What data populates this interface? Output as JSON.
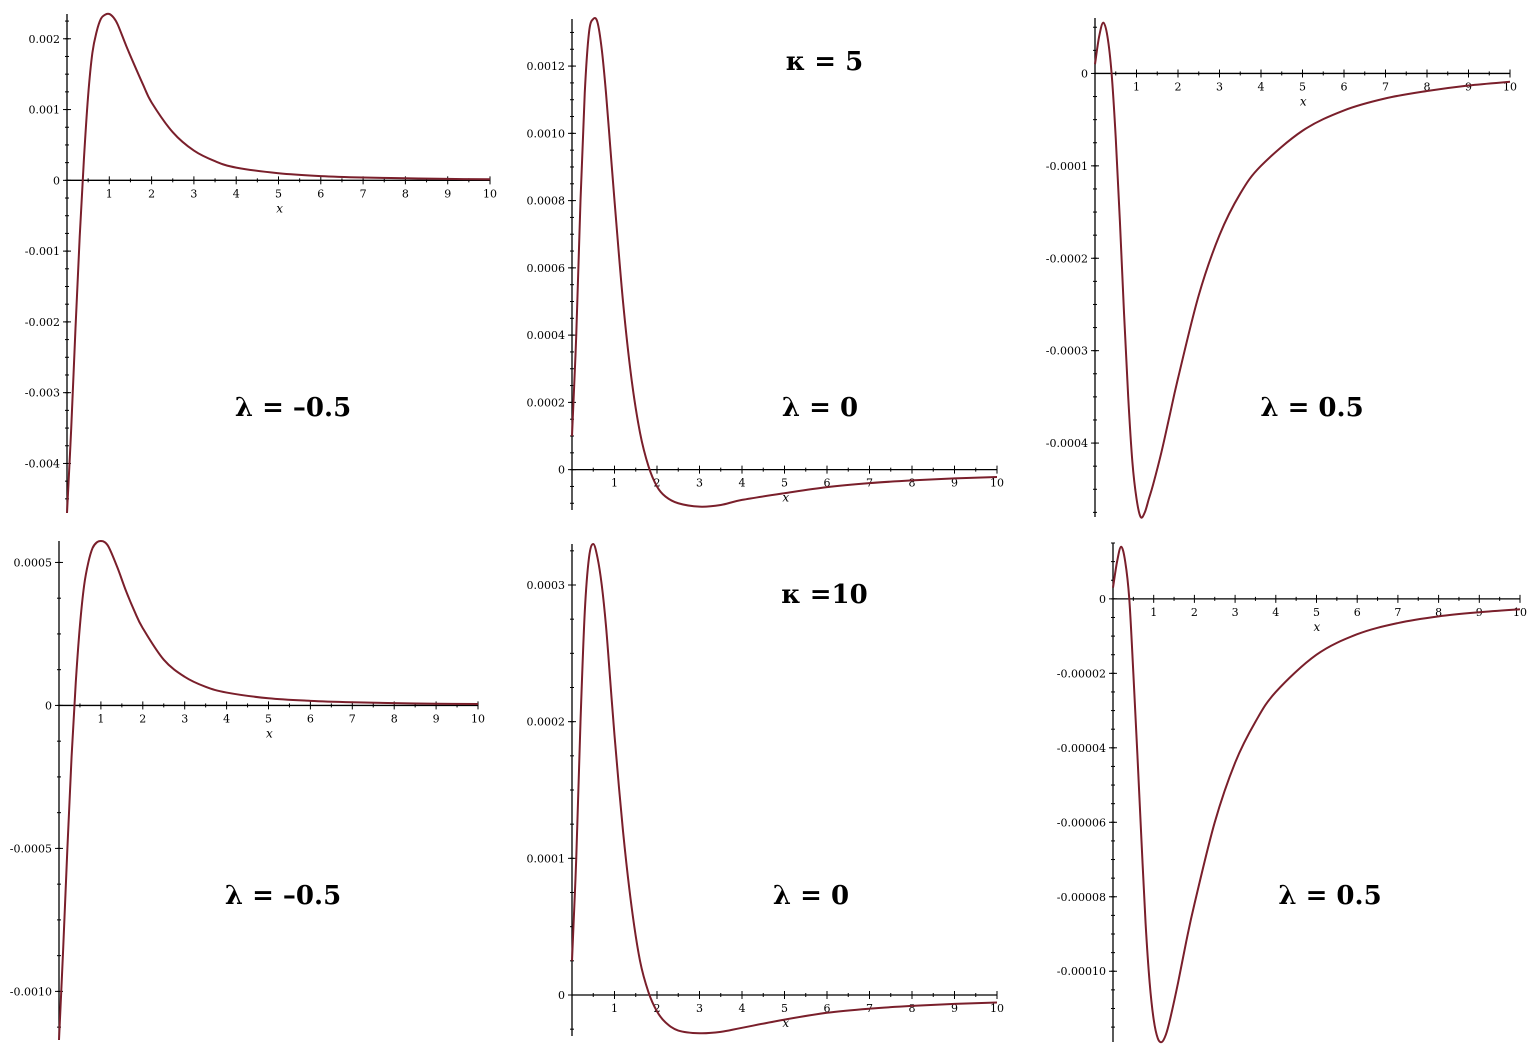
{
  "colors": {
    "curve": "#7a1f2b",
    "axes": "#000000",
    "background": "#ffffff"
  },
  "chart_data": [
    {
      "type": "line",
      "panel": "top-left",
      "xlabel": "x",
      "annotation": "λ = –0.5",
      "xlim": [
        0,
        10
      ],
      "ylim": [
        -0.0047,
        0.00235
      ],
      "xticks": [
        1,
        2,
        3,
        4,
        5,
        6,
        7,
        8,
        9,
        10
      ],
      "xtick_labels": [
        "1",
        "2",
        "3",
        "4",
        "5",
        "6",
        "7",
        "8",
        "9",
        "10"
      ],
      "yticks": [
        -0.004,
        -0.003,
        -0.002,
        -0.001,
        0,
        0.001,
        0.002
      ],
      "ytick_labels": [
        "-0.004",
        "-0.003",
        "-0.002",
        "-0.001",
        "0",
        "0.001",
        "0.002"
      ],
      "x": [
        0,
        0.1,
        0.2,
        0.3,
        0.4,
        0.5,
        0.6,
        0.7,
        0.8,
        0.9,
        1,
        1.1,
        1.2,
        1.4,
        1.6,
        1.8,
        2,
        2.5,
        3,
        3.5,
        4,
        5,
        6,
        7,
        8,
        9,
        10
      ],
      "y": [
        -0.0047,
        -0.0035,
        -0.0021,
        -0.0008,
        0.0003,
        0.0012,
        0.0018,
        0.0021,
        0.00228,
        0.00234,
        0.00235,
        0.0023,
        0.0022,
        0.0019,
        0.00162,
        0.00135,
        0.0011,
        0.00068,
        0.00042,
        0.00027,
        0.00018,
        0.0001,
        6e-05,
        4e-05,
        3e-05,
        2e-05,
        1.5e-05
      ]
    },
    {
      "type": "line",
      "panel": "top-middle",
      "xlabel": "x",
      "annotation": "λ = 0",
      "title": "κ = 5",
      "xlim": [
        0,
        10
      ],
      "ylim": [
        -0.00012,
        0.00134
      ],
      "xticks": [
        1,
        2,
        3,
        4,
        5,
        6,
        7,
        8,
        9,
        10
      ],
      "xtick_labels": [
        "1",
        "2",
        "3",
        "4",
        "5",
        "6",
        "7",
        "8",
        "9",
        "10"
      ],
      "yticks": [
        0,
        0.0002,
        0.0004,
        0.0006,
        0.0008,
        0.001,
        0.0012
      ],
      "ytick_labels": [
        "0",
        "0.0002",
        "0.0004",
        "0.0006",
        "0.0008",
        "0.0010",
        "0.0012"
      ],
      "x": [
        0,
        0.1,
        0.2,
        0.3,
        0.4,
        0.5,
        0.6,
        0.7,
        0.8,
        0.9,
        1,
        1.2,
        1.4,
        1.6,
        1.8,
        2,
        2.2,
        2.5,
        3,
        3.5,
        4,
        5,
        6,
        7,
        8,
        9,
        10
      ],
      "y": [
        0.0001,
        0.0004,
        0.0008,
        0.00112,
        0.0013,
        0.00134,
        0.00133,
        0.00125,
        0.00112,
        0.00096,
        0.0008,
        0.0005,
        0.00027,
        0.00011,
        1e-05,
        -5e-05,
        -8e-05,
        -0.0001,
        -0.00011,
        -0.000105,
        -9e-05,
        -7e-05,
        -5.2e-05,
        -4e-05,
        -3.2e-05,
        -2.6e-05,
        -2.2e-05
      ]
    },
    {
      "type": "line",
      "panel": "top-right",
      "xlabel": "x",
      "annotation": "λ = 0.5",
      "xlim": [
        0,
        10
      ],
      "ylim": [
        -0.00048,
        6e-05
      ],
      "xticks": [
        1,
        2,
        3,
        4,
        5,
        6,
        7,
        8,
        9,
        10
      ],
      "xtick_labels": [
        "1",
        "2",
        "3",
        "4",
        "5",
        "6",
        "7",
        "8",
        "9",
        "10"
      ],
      "yticks": [
        -0.0004,
        -0.0003,
        -0.0002,
        -0.0001,
        0
      ],
      "ytick_labels": [
        "-0.0004",
        "-0.0003",
        "-0.0002",
        "-0.0001",
        "0"
      ],
      "x": [
        0,
        0.1,
        0.2,
        0.3,
        0.4,
        0.5,
        0.6,
        0.7,
        0.8,
        0.9,
        1,
        1.1,
        1.2,
        1.3,
        1.4,
        1.6,
        1.8,
        2,
        2.5,
        3,
        3.5,
        4,
        5,
        6,
        7,
        8,
        9,
        10
      ],
      "y": [
        1e-05,
        4e-05,
        5.5e-05,
        4e-05,
        0,
        -7e-05,
        -0.00016,
        -0.00026,
        -0.00035,
        -0.00042,
        -0.00046,
        -0.00048,
        -0.000475,
        -0.00046,
        -0.000445,
        -0.00041,
        -0.00037,
        -0.00033,
        -0.00024,
        -0.000175,
        -0.00013,
        -0.0001,
        -6.2e-05,
        -4e-05,
        -2.7e-05,
        -1.9e-05,
        -1.3e-05,
        -9e-06
      ]
    },
    {
      "type": "line",
      "panel": "bottom-left",
      "xlabel": "x",
      "annotation": "λ = –0.5",
      "xlim": [
        0,
        10
      ],
      "ylim": [
        -0.00117,
        0.000575
      ],
      "xticks": [
        1,
        2,
        3,
        4,
        5,
        6,
        7,
        8,
        9,
        10
      ],
      "xtick_labels": [
        "1",
        "2",
        "3",
        "4",
        "5",
        "6",
        "7",
        "8",
        "9",
        "10"
      ],
      "yticks": [
        -0.001,
        -0.0005,
        0,
        0.0005
      ],
      "ytick_labels": [
        "-0.0010",
        "-0.0005",
        "0",
        "0.0005"
      ],
      "x": [
        0,
        0.1,
        0.2,
        0.3,
        0.4,
        0.5,
        0.6,
        0.7,
        0.8,
        0.9,
        1,
        1.1,
        1.2,
        1.4,
        1.6,
        1.8,
        2,
        2.5,
        3,
        3.5,
        4,
        5,
        6,
        7,
        8,
        9,
        10
      ],
      "y": [
        -0.00117,
        -0.00085,
        -0.0005,
        -0.00018,
        8e-05,
        0.00028,
        0.00042,
        0.0005,
        0.00055,
        0.00057,
        0.000575,
        0.00057,
        0.00055,
        0.00048,
        0.0004,
        0.00033,
        0.00027,
        0.00016,
        0.0001,
        6.5e-05,
        4.5e-05,
        2.5e-05,
        1.6e-05,
        1.1e-05,
        8e-06,
        6e-06,
        5e-06
      ]
    },
    {
      "type": "line",
      "panel": "bottom-middle",
      "xlabel": "x",
      "annotation": "λ = 0",
      "title": "κ =10",
      "xlim": [
        0,
        10
      ],
      "ylim": [
        -3e-05,
        0.00033
      ],
      "xticks": [
        1,
        2,
        3,
        4,
        5,
        6,
        7,
        8,
        9,
        10
      ],
      "xtick_labels": [
        "1",
        "2",
        "3",
        "4",
        "5",
        "6",
        "7",
        "8",
        "9",
        "10"
      ],
      "yticks": [
        0,
        0.0001,
        0.0002,
        0.0003
      ],
      "ytick_labels": [
        "0",
        "0.0001",
        "0.0002",
        "0.0003"
      ],
      "x": [
        0,
        0.1,
        0.2,
        0.3,
        0.4,
        0.5,
        0.6,
        0.7,
        0.8,
        0.9,
        1,
        1.2,
        1.4,
        1.6,
        1.8,
        2,
        2.2,
        2.5,
        3,
        3.5,
        4,
        5,
        6,
        7,
        8,
        9,
        10
      ],
      "y": [
        2.5e-05,
        0.0001,
        0.0002,
        0.00028,
        0.00032,
        0.00033,
        0.00032,
        0.0003,
        0.00027,
        0.00023,
        0.00019,
        0.00012,
        6.5e-05,
        2.5e-05,
        2e-06,
        -1.2e-05,
        -2e-05,
        -2.6e-05,
        -2.8e-05,
        -2.7e-05,
        -2.4e-05,
        -1.8e-05,
        -1.3e-05,
        -1e-05,
        -8e-06,
        -6.5e-06,
        -5.5e-06
      ]
    },
    {
      "type": "line",
      "panel": "bottom-right",
      "xlabel": "x",
      "annotation": "λ = 0.5",
      "xlim": [
        0,
        10
      ],
      "ylim": [
        -0.000119,
        1.5e-05
      ],
      "xticks": [
        1,
        2,
        3,
        4,
        5,
        6,
        7,
        8,
        9,
        10
      ],
      "xtick_labels": [
        "1",
        "2",
        "3",
        "4",
        "5",
        "6",
        "7",
        "8",
        "9",
        "10"
      ],
      "yticks": [
        -0.0001,
        -8e-05,
        -6e-05,
        -4e-05,
        -2e-05,
        0
      ],
      "ytick_labels": [
        "-0.00010",
        "-0.00008",
        "-0.00006",
        "-0.00004",
        "-0.00002",
        "0"
      ],
      "x": [
        0,
        0.1,
        0.2,
        0.3,
        0.4,
        0.5,
        0.6,
        0.7,
        0.8,
        0.9,
        1,
        1.1,
        1.2,
        1.3,
        1.4,
        1.6,
        1.8,
        2,
        2.5,
        3,
        3.5,
        4,
        5,
        6,
        7,
        8,
        9,
        10
      ],
      "y": [
        3e-06,
        1e-05,
        1.4e-05,
        1e-05,
        0,
        -2e-05,
        -4.2e-05,
        -6.5e-05,
        -8.7e-05,
        -0.000103,
        -0.000113,
        -0.000118,
        -0.000119,
        -0.000117,
        -0.000113,
        -0.000103,
        -9.2e-05,
        -8.2e-05,
        -6e-05,
        -4.4e-05,
        -3.3e-05,
        -2.5e-05,
        -1.5e-05,
        -9.5e-06,
        -6.5e-06,
        -4.7e-06,
        -3.6e-06,
        -2.8e-06
      ]
    }
  ]
}
